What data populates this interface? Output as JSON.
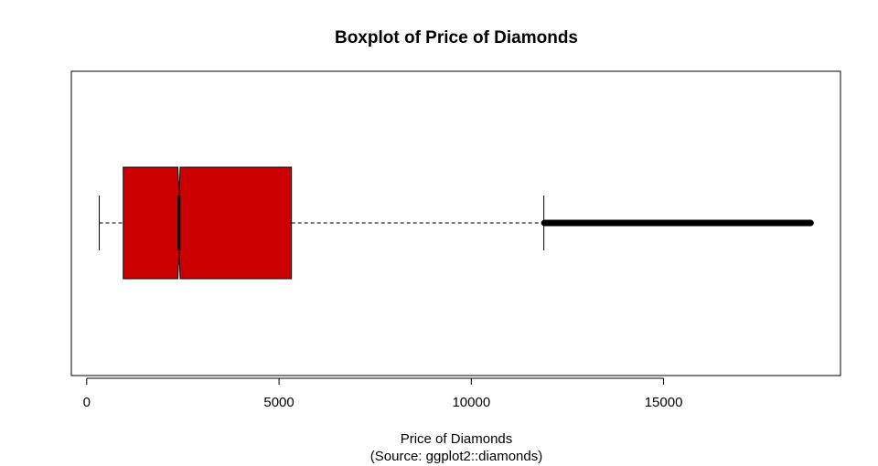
{
  "chart_data": {
    "type": "boxplot",
    "orientation": "horizontal",
    "notched": true,
    "title": "Boxplot of Price of Diamonds",
    "xlabel": "Price of Diamonds",
    "xlabel_sub": "(Source: ggplot2::diamonds)",
    "ylabel": "",
    "xlim": [
      -400,
      19600
    ],
    "x_ticks": [
      0,
      5000,
      10000,
      15000
    ],
    "x_tick_labels": [
      "0",
      "5000",
      "10000",
      "15000"
    ],
    "box": {
      "whisker_low": 326,
      "q1": 950,
      "median": 2401,
      "q3": 5324,
      "whisker_high": 11886,
      "notch_low": 2371,
      "notch_high": 2431
    },
    "outliers": {
      "from": 11900,
      "to": 18823
    },
    "colors": {
      "box_fill": "#cc0000",
      "line": "#000000",
      "background": "#ffffff"
    }
  }
}
